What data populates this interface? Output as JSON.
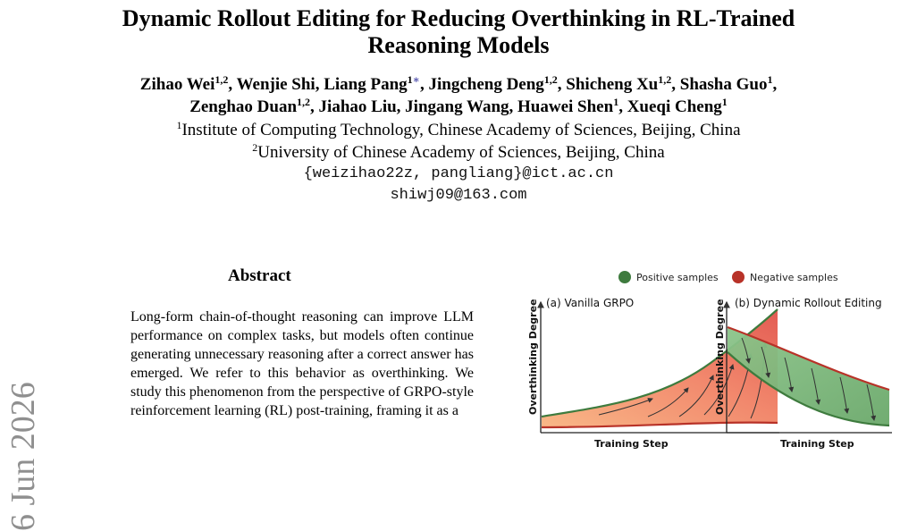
{
  "title_line1": "Dynamic Rollout Editing for Reducing Overthinking in RL-Trained",
  "title_line2": "Reasoning Models",
  "authors_line1": [
    {
      "name": "Zihao Wei",
      "sup": "1,2",
      "sep": ", "
    },
    {
      "name": "Wenjie Shi",
      "sup": "",
      "sep": ", "
    },
    {
      "name": "Liang Pang",
      "sup": "1",
      "star": "∗",
      "sep": ", "
    },
    {
      "name": "Jingcheng Deng",
      "sup": "1,2",
      "sep": ", "
    },
    {
      "name": "Shicheng Xu",
      "sup": "1,2",
      "sep": ", "
    },
    {
      "name": "Shasha Guo",
      "sup": "1",
      "sep": ","
    }
  ],
  "authors_line2": [
    {
      "name": "Zenghao Duan",
      "sup": "1,2",
      "sep": ", "
    },
    {
      "name": "Jiahao Liu",
      "sup": "",
      "sep": ", "
    },
    {
      "name": "Jingang Wang",
      "sup": "",
      "sep": ", "
    },
    {
      "name": "Huawei Shen",
      "sup": "1",
      "sep": ", "
    },
    {
      "name": "Xueqi Cheng",
      "sup": "1",
      "sep": ""
    }
  ],
  "affiliation1": {
    "sup": "1",
    "text": "Institute of Computing Technology, Chinese Academy of Sciences, Beijing, China"
  },
  "affiliation2": {
    "sup": "2",
    "text": "University of Chinese Academy of Sciences, Beijing, China"
  },
  "email1": "{weizihao22z, pangliang}@ict.ac.cn",
  "email2": "shiwj09@163.com",
  "arxiv_stamp": "6 Jun 2026",
  "abstract_heading": "Abstract",
  "abstract_text": "Long-form chain-of-thought reasoning can improve LLM performance on complex tasks, but models often continue generating unnecessary reasoning after a correct answer has emerged. We refer to this behavior as overthinking. We study this phenomenon from the perspective of GRPO-style reinforcement learning (RL) post-training, framing it as a",
  "figure": {
    "legend": {
      "positive": "Positive samples",
      "negative": "Negative samples"
    },
    "panel_a": {
      "title": "(a) Vanilla GRPO",
      "xlabel": "Training Step",
      "ylabel": "Overthinking Degree"
    },
    "panel_b": {
      "title": "(b) Dynamic Rollout Editing",
      "xlabel": "Training Step",
      "ylabel": "Overthinking Degree"
    },
    "colors": {
      "positive": "#3e7b3e",
      "negative": "#b83228",
      "fill_green": "#7db77a",
      "fill_red": "#e8584a",
      "fill_orange": "#f6a76a"
    }
  }
}
